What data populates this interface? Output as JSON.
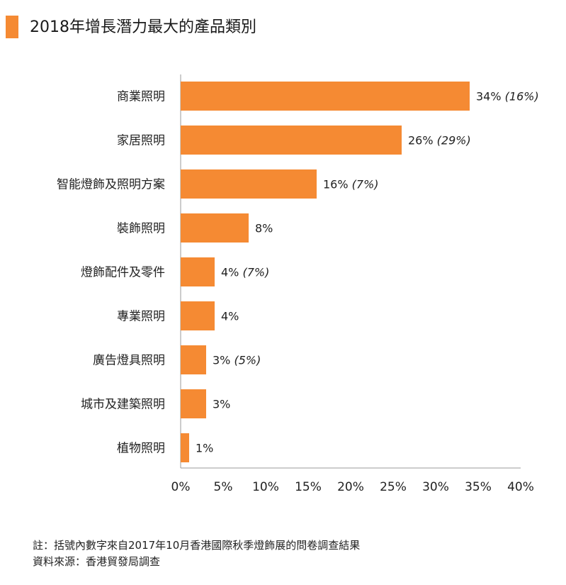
{
  "title": "2018年增長潛力最大的產品類別",
  "accent_color": "#f58a33",
  "chart_data": {
    "type": "bar",
    "orientation": "horizontal",
    "title": "2018年增長潛力最大的產品類別",
    "categories": [
      "商業照明",
      "家居照明",
      "智能燈飾及照明方案",
      "裝飾照明",
      "燈飾配件及零件",
      "專業照明",
      "廣告燈具照明",
      "城市及建築照明",
      "植物照明"
    ],
    "values": [
      34,
      26,
      16,
      8,
      4,
      4,
      3,
      3,
      1
    ],
    "data_labels": [
      "34%",
      "26%",
      "16%",
      "8%",
      "4%",
      "4%",
      "3%",
      "3%",
      "1%"
    ],
    "previous_labels": [
      "(16%)",
      "(29%)",
      "(7%)",
      "",
      "(7%)",
      "",
      "(5%)",
      "",
      ""
    ],
    "x_ticks": [
      "0%",
      "5%",
      "10%",
      "15%",
      "20%",
      "25%",
      "30%",
      "35%",
      "40%"
    ],
    "xlim": [
      0,
      40
    ],
    "grid": false,
    "bar_color": "#f58a33"
  },
  "notes": [
    "註：括號內數字來自2017年10月香港國際秋季燈飾展的問卷調查結果",
    "資料來源：香港貿發局調查"
  ]
}
